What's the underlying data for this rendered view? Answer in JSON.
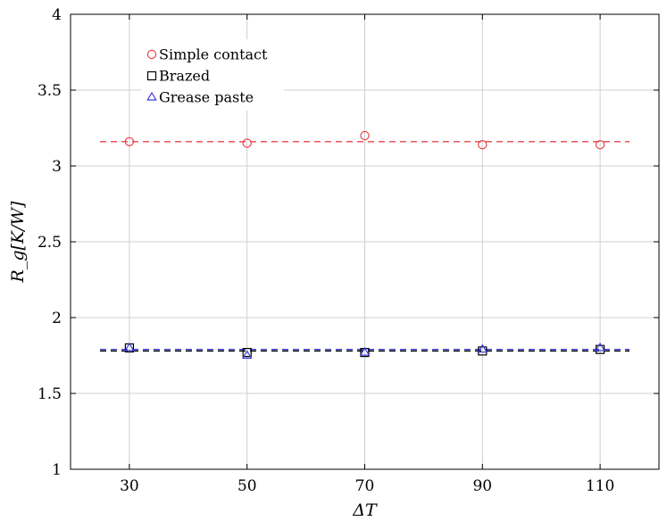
{
  "chart_data": {
    "type": "scatter",
    "xlabel": "ΔT",
    "ylabel": "R_g[K/W]",
    "x_ticks": [
      30,
      50,
      70,
      90,
      110
    ],
    "y_ticks": [
      "1",
      "1.5",
      "2",
      "2.5",
      "3",
      "3.5",
      "4"
    ],
    "xlim": [
      20,
      120
    ],
    "ylim": [
      1,
      4
    ],
    "grid": true,
    "legend_position": "top-left",
    "series": [
      {
        "name": "Simple contact",
        "marker": "circle",
        "color": "#e8434a",
        "x": [
          30,
          50,
          70,
          90,
          110
        ],
        "y": [
          3.16,
          3.15,
          3.2,
          3.14,
          3.14
        ],
        "fit": 3.16
      },
      {
        "name": "Brazed",
        "marker": "square",
        "color": "#000000",
        "x": [
          30,
          50,
          70,
          90,
          110
        ],
        "y": [
          1.8,
          1.77,
          1.77,
          1.78,
          1.79
        ],
        "fit": 1.78
      },
      {
        "name": "Grease paste",
        "marker": "triangle",
        "color": "#3a3ad6",
        "x": [
          30,
          50,
          70,
          90,
          110
        ],
        "y": [
          1.8,
          1.75,
          1.77,
          1.79,
          1.8
        ],
        "fit": 1.79
      }
    ],
    "fit_lines": {
      "x_range": [
        25,
        115
      ]
    }
  }
}
